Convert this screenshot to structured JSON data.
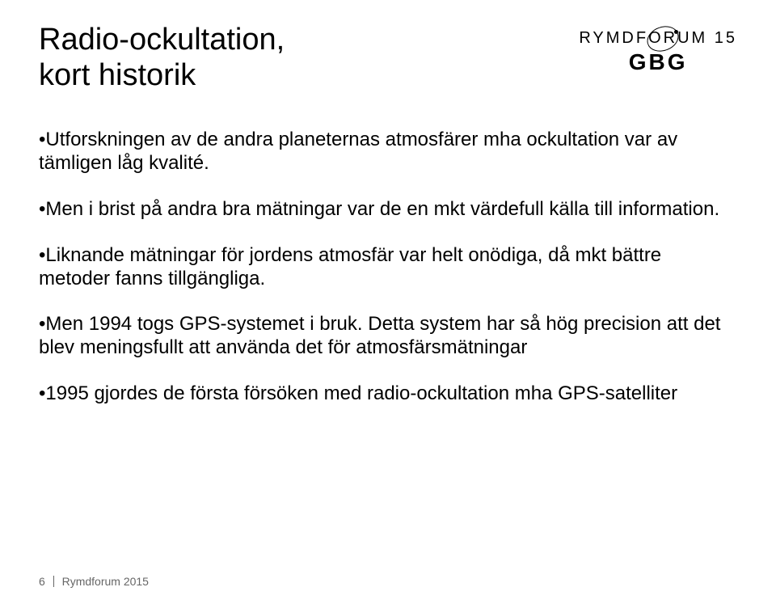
{
  "title": {
    "line1": "Radio-ockultation,",
    "line2": "kort historik"
  },
  "logo": {
    "top_text": "RYMDFORUM 15",
    "bottom_text": "GBG"
  },
  "bullets": [
    "•Utforskningen av de andra planeternas atmosfärer mha ockultation var av tämligen låg kvalité.",
    "•Men i brist på andra bra mätningar var de en mkt värdefull källa till information.",
    "•Liknande mätningar för jordens atmosfär var helt onödiga, då mkt bättre metoder fanns tillgängliga.",
    "•Men 1994 togs GPS-systemet i bruk. Detta system har så hög precision att det blev meningsfullt att använda det för atmosfärsmätningar",
    "•1995 gjordes de första försöken med radio-ockultation mha GPS-satelliter"
  ],
  "footer": {
    "page": "6",
    "title": "Rymdforum 2015"
  },
  "colors": {
    "text": "#000000",
    "footer": "#666666",
    "background": "#ffffff"
  },
  "typography": {
    "title_fontsize": 38,
    "body_fontsize": 24,
    "footer_fontsize": 14,
    "logo_top_fontsize": 20,
    "logo_bottom_fontsize": 28
  }
}
